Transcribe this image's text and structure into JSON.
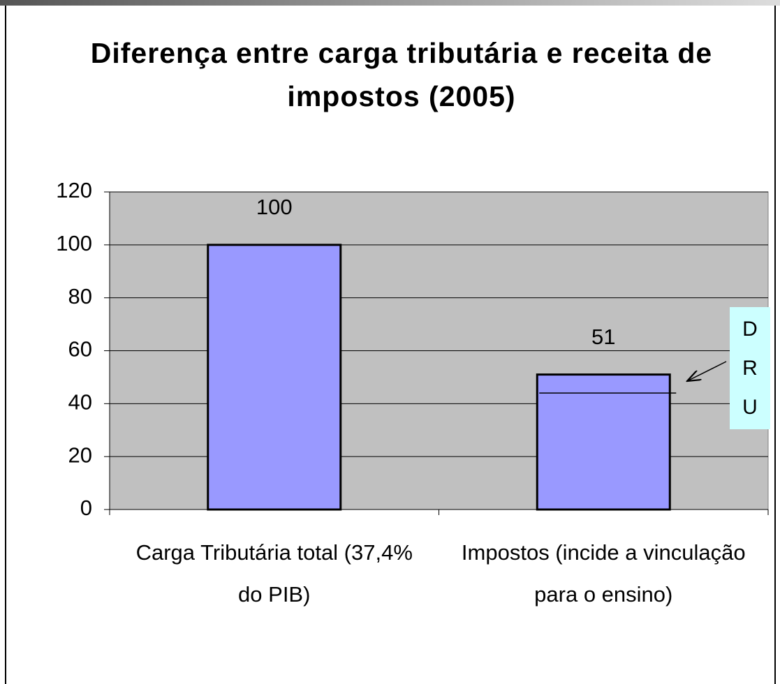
{
  "chart_data": {
    "type": "bar",
    "title": "Diferença entre carga tributária e receita de impostos (2005)",
    "categories": [
      "Carga Tributária total (37,4% do PIB)",
      "Impostos (incide a vinculação para o ensino)"
    ],
    "values": [
      100,
      51
    ],
    "color": "#9999ff",
    "ylim": [
      0,
      120
    ],
    "yticks": [
      0,
      20,
      40,
      60,
      80,
      100,
      120
    ],
    "grid": true,
    "annotation": {
      "text": "DRU",
      "value": 44
    }
  }
}
